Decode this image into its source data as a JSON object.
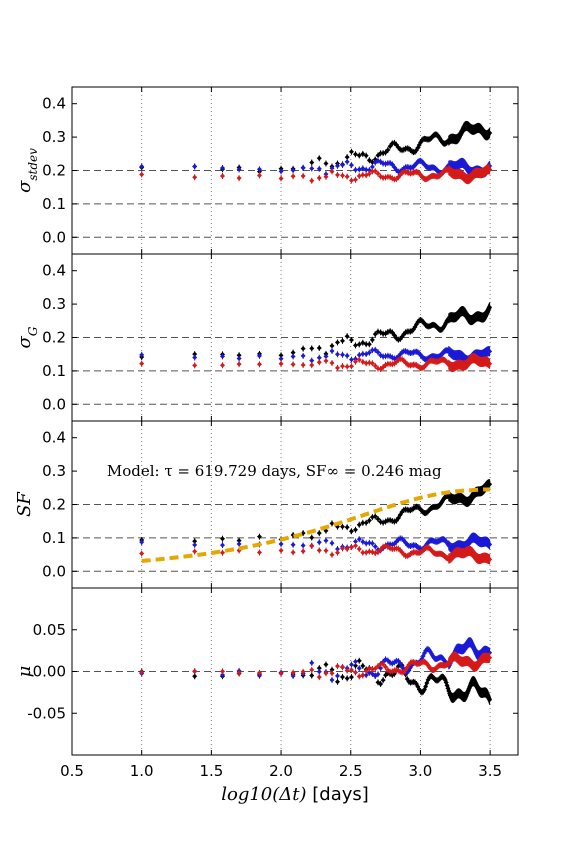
{
  "chart_data": {
    "type": "scatter",
    "x_axis": {
      "xlim": [
        0.5,
        3.7
      ],
      "ticks": [
        0.5,
        1.0,
        1.5,
        2.0,
        2.5,
        3.0,
        3.5
      ],
      "tick_labels": [
        "0.5",
        "1.0",
        "1.5",
        "2.0",
        "2.5",
        "3.0",
        "3.5"
      ],
      "xlabel_math": "log10(Δt)",
      "xlabel_unit": "[days]",
      "grid": "vertical dotted"
    },
    "colors": {
      "black": "#000000",
      "blue": "#1a1ad6",
      "red": "#d41a1a",
      "model": "#e6a800",
      "grid": "#808080"
    },
    "panels": [
      {
        "id": "stdev",
        "ylabel_main": "σ",
        "ylabel_sub": "stdev",
        "ylim": [
          -0.05,
          0.45
        ],
        "yticks": [
          0.0,
          0.1,
          0.2,
          0.3,
          0.4
        ],
        "ytick_labels": [
          "0.0",
          "0.1",
          "0.2",
          "0.3",
          "0.4"
        ],
        "hlines": [
          0.0,
          0.1,
          0.2
        ],
        "series": [
          {
            "color": "black",
            "start": 0.215,
            "flat_end": 0.2,
            "mid": 0.25,
            "end": 0.33,
            "osc": 0.015
          },
          {
            "color": "blue",
            "start": 0.215,
            "flat_end": 0.2,
            "mid": 0.215,
            "end": 0.205,
            "osc": 0.012
          },
          {
            "color": "red",
            "start": 0.185,
            "flat_end": 0.18,
            "mid": 0.185,
            "end": 0.19,
            "osc": 0.01
          }
        ]
      },
      {
        "id": "sigmaG",
        "ylabel_main": "σ",
        "ylabel_sub": "G",
        "ylim": [
          -0.05,
          0.45
        ],
        "yticks": [
          0.0,
          0.1,
          0.2,
          0.3,
          0.4
        ],
        "ytick_labels": [
          "0.0",
          "0.1",
          "0.2",
          "0.3",
          "0.4"
        ],
        "hlines": [
          0.0,
          0.1,
          0.2
        ],
        "series": [
          {
            "color": "black",
            "start": 0.145,
            "flat_end": 0.15,
            "mid": 0.2,
            "end": 0.28,
            "osc": 0.015
          },
          {
            "color": "blue",
            "start": 0.145,
            "flat_end": 0.14,
            "mid": 0.15,
            "end": 0.145,
            "osc": 0.01
          },
          {
            "color": "red",
            "start": 0.12,
            "flat_end": 0.12,
            "mid": 0.12,
            "end": 0.125,
            "osc": 0.01
          }
        ]
      },
      {
        "id": "SF",
        "ylabel_main": "SF",
        "ylabel_sub": "",
        "ylim": [
          -0.05,
          0.45
        ],
        "yticks": [
          0.0,
          0.1,
          0.2,
          0.3,
          0.4
        ],
        "ytick_labels": [
          "0.0",
          "0.1",
          "0.2",
          "0.3",
          "0.4"
        ],
        "hlines": [
          0.0,
          0.1,
          0.2
        ],
        "annotation": "Model:  τ = 619.729 days,  SF∞ = 0.246 mag",
        "model_curve": {
          "tau_days": 619.729,
          "sf_inf": 0.246,
          "x_from": 1.0,
          "x_to": 3.5
        },
        "series": [
          {
            "color": "black",
            "start": 0.09,
            "flat_end": 0.1,
            "mid": 0.15,
            "end": 0.245,
            "osc": 0.012
          },
          {
            "color": "blue",
            "start": 0.085,
            "flat_end": 0.08,
            "mid": 0.08,
            "end": 0.085,
            "osc": 0.012
          },
          {
            "color": "red",
            "start": 0.055,
            "flat_end": 0.06,
            "mid": 0.065,
            "end": 0.045,
            "osc": 0.01
          }
        ]
      },
      {
        "id": "mu",
        "ylabel_main": "μ",
        "ylabel_sub": "",
        "ylim": [
          -0.1,
          0.1
        ],
        "yticks": [
          -0.05,
          0.0,
          0.05
        ],
        "ytick_labels": [
          "-0.05",
          "0.00",
          "0.05"
        ],
        "hlines": [
          0.0
        ],
        "series": [
          {
            "color": "black",
            "start": -0.002,
            "flat_end": -0.003,
            "mid": 0.0,
            "end": -0.03,
            "osc": 0.01
          },
          {
            "color": "blue",
            "start": -0.001,
            "flat_end": -0.003,
            "mid": 0.003,
            "end": 0.03,
            "osc": 0.008
          },
          {
            "color": "red",
            "start": -0.001,
            "flat_end": -0.002,
            "mid": 0.002,
            "end": 0.015,
            "osc": 0.005
          }
        ]
      }
    ]
  }
}
